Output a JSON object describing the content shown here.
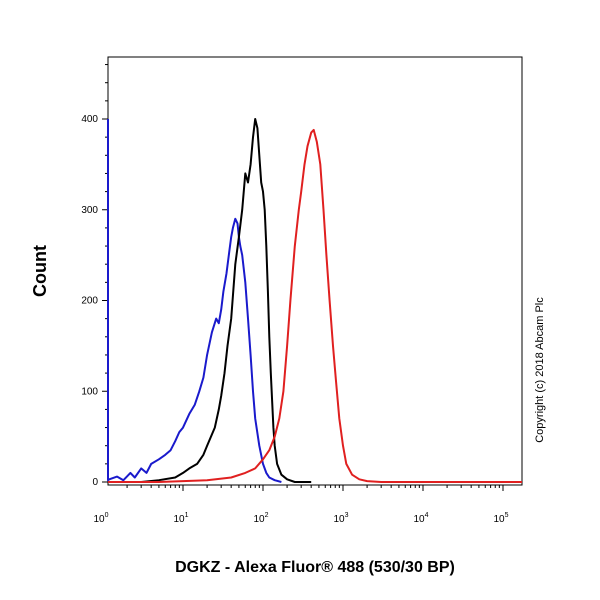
{
  "chart_data": {
    "type": "line",
    "xlabel": "DGKZ - Alexa Fluor® 488 (530/30 BP)",
    "ylabel": "Count",
    "x_scale": "log",
    "xlim": [
      0.5,
      250000
    ],
    "ylim": [
      0,
      470
    ],
    "x_ticks": [
      {
        "base": "10",
        "exp": "0",
        "value": 1
      },
      {
        "base": "10",
        "exp": "1",
        "value": 10
      },
      {
        "base": "10",
        "exp": "2",
        "value": 100
      },
      {
        "base": "10",
        "exp": "3",
        "value": 1000
      },
      {
        "base": "10",
        "exp": "4",
        "value": 10000
      },
      {
        "base": "10",
        "exp": "5",
        "value": 100000
      }
    ],
    "y_ticks": [
      0,
      100,
      200,
      300,
      400
    ],
    "grid": false,
    "legend": "none",
    "copyright": "Copyright (c) 2018 Abcam Plc",
    "series": [
      {
        "color": "#1a1acc",
        "points": [
          [
            0.5,
            400
          ],
          [
            0.55,
            150
          ],
          [
            0.6,
            30
          ],
          [
            0.7,
            8
          ],
          [
            0.8,
            12
          ],
          [
            0.9,
            4
          ],
          [
            1.0,
            2
          ],
          [
            1.2,
            3
          ],
          [
            1.5,
            6
          ],
          [
            1.8,
            2
          ],
          [
            2.2,
            10
          ],
          [
            2.5,
            5
          ],
          [
            3,
            15
          ],
          [
            3.5,
            10
          ],
          [
            4,
            20
          ],
          [
            5,
            25
          ],
          [
            6,
            30
          ],
          [
            7,
            35
          ],
          [
            8,
            45
          ],
          [
            9,
            55
          ],
          [
            10,
            60
          ],
          [
            12,
            75
          ],
          [
            14,
            85
          ],
          [
            16,
            100
          ],
          [
            18,
            115
          ],
          [
            20,
            140
          ],
          [
            23,
            165
          ],
          [
            26,
            180
          ],
          [
            28,
            175
          ],
          [
            30,
            190
          ],
          [
            32,
            210
          ],
          [
            35,
            230
          ],
          [
            38,
            255
          ],
          [
            40,
            270
          ],
          [
            42,
            280
          ],
          [
            45,
            290
          ],
          [
            48,
            285
          ],
          [
            50,
            270
          ],
          [
            52,
            260
          ],
          [
            55,
            250
          ],
          [
            60,
            220
          ],
          [
            65,
            180
          ],
          [
            70,
            140
          ],
          [
            75,
            100
          ],
          [
            80,
            70
          ],
          [
            90,
            40
          ],
          [
            100,
            20
          ],
          [
            110,
            10
          ],
          [
            120,
            5
          ],
          [
            140,
            2
          ],
          [
            170,
            0
          ]
        ]
      },
      {
        "color": "#000000",
        "points": [
          [
            0.5,
            0
          ],
          [
            1,
            0
          ],
          [
            3,
            0
          ],
          [
            5,
            2
          ],
          [
            8,
            5
          ],
          [
            10,
            10
          ],
          [
            12,
            15
          ],
          [
            15,
            20
          ],
          [
            18,
            30
          ],
          [
            20,
            40
          ],
          [
            25,
            60
          ],
          [
            28,
            80
          ],
          [
            30,
            95
          ],
          [
            33,
            120
          ],
          [
            36,
            150
          ],
          [
            40,
            180
          ],
          [
            45,
            240
          ],
          [
            50,
            270
          ],
          [
            55,
            300
          ],
          [
            60,
            340
          ],
          [
            65,
            330
          ],
          [
            70,
            350
          ],
          [
            75,
            380
          ],
          [
            80,
            400
          ],
          [
            85,
            390
          ],
          [
            90,
            360
          ],
          [
            95,
            330
          ],
          [
            100,
            320
          ],
          [
            105,
            300
          ],
          [
            110,
            260
          ],
          [
            115,
            210
          ],
          [
            120,
            160
          ],
          [
            125,
            120
          ],
          [
            130,
            90
          ],
          [
            135,
            60
          ],
          [
            140,
            40
          ],
          [
            150,
            20
          ],
          [
            170,
            8
          ],
          [
            200,
            3
          ],
          [
            250,
            0
          ],
          [
            400,
            0
          ]
        ]
      },
      {
        "color": "#e02020",
        "points": [
          [
            0.5,
            0
          ],
          [
            5,
            0
          ],
          [
            10,
            1
          ],
          [
            20,
            2
          ],
          [
            40,
            5
          ],
          [
            60,
            10
          ],
          [
            80,
            15
          ],
          [
            100,
            25
          ],
          [
            120,
            35
          ],
          [
            140,
            50
          ],
          [
            160,
            70
          ],
          [
            180,
            100
          ],
          [
            200,
            150
          ],
          [
            220,
            200
          ],
          [
            250,
            260
          ],
          [
            280,
            300
          ],
          [
            300,
            320
          ],
          [
            330,
            350
          ],
          [
            360,
            370
          ],
          [
            400,
            385
          ],
          [
            430,
            388
          ],
          [
            470,
            375
          ],
          [
            520,
            350
          ],
          [
            570,
            300
          ],
          [
            620,
            250
          ],
          [
            680,
            200
          ],
          [
            750,
            150
          ],
          [
            820,
            110
          ],
          [
            900,
            70
          ],
          [
            1000,
            40
          ],
          [
            1100,
            20
          ],
          [
            1300,
            8
          ],
          [
            1600,
            3
          ],
          [
            2000,
            1
          ],
          [
            3000,
            0
          ],
          [
            250000,
            0
          ]
        ]
      }
    ]
  }
}
